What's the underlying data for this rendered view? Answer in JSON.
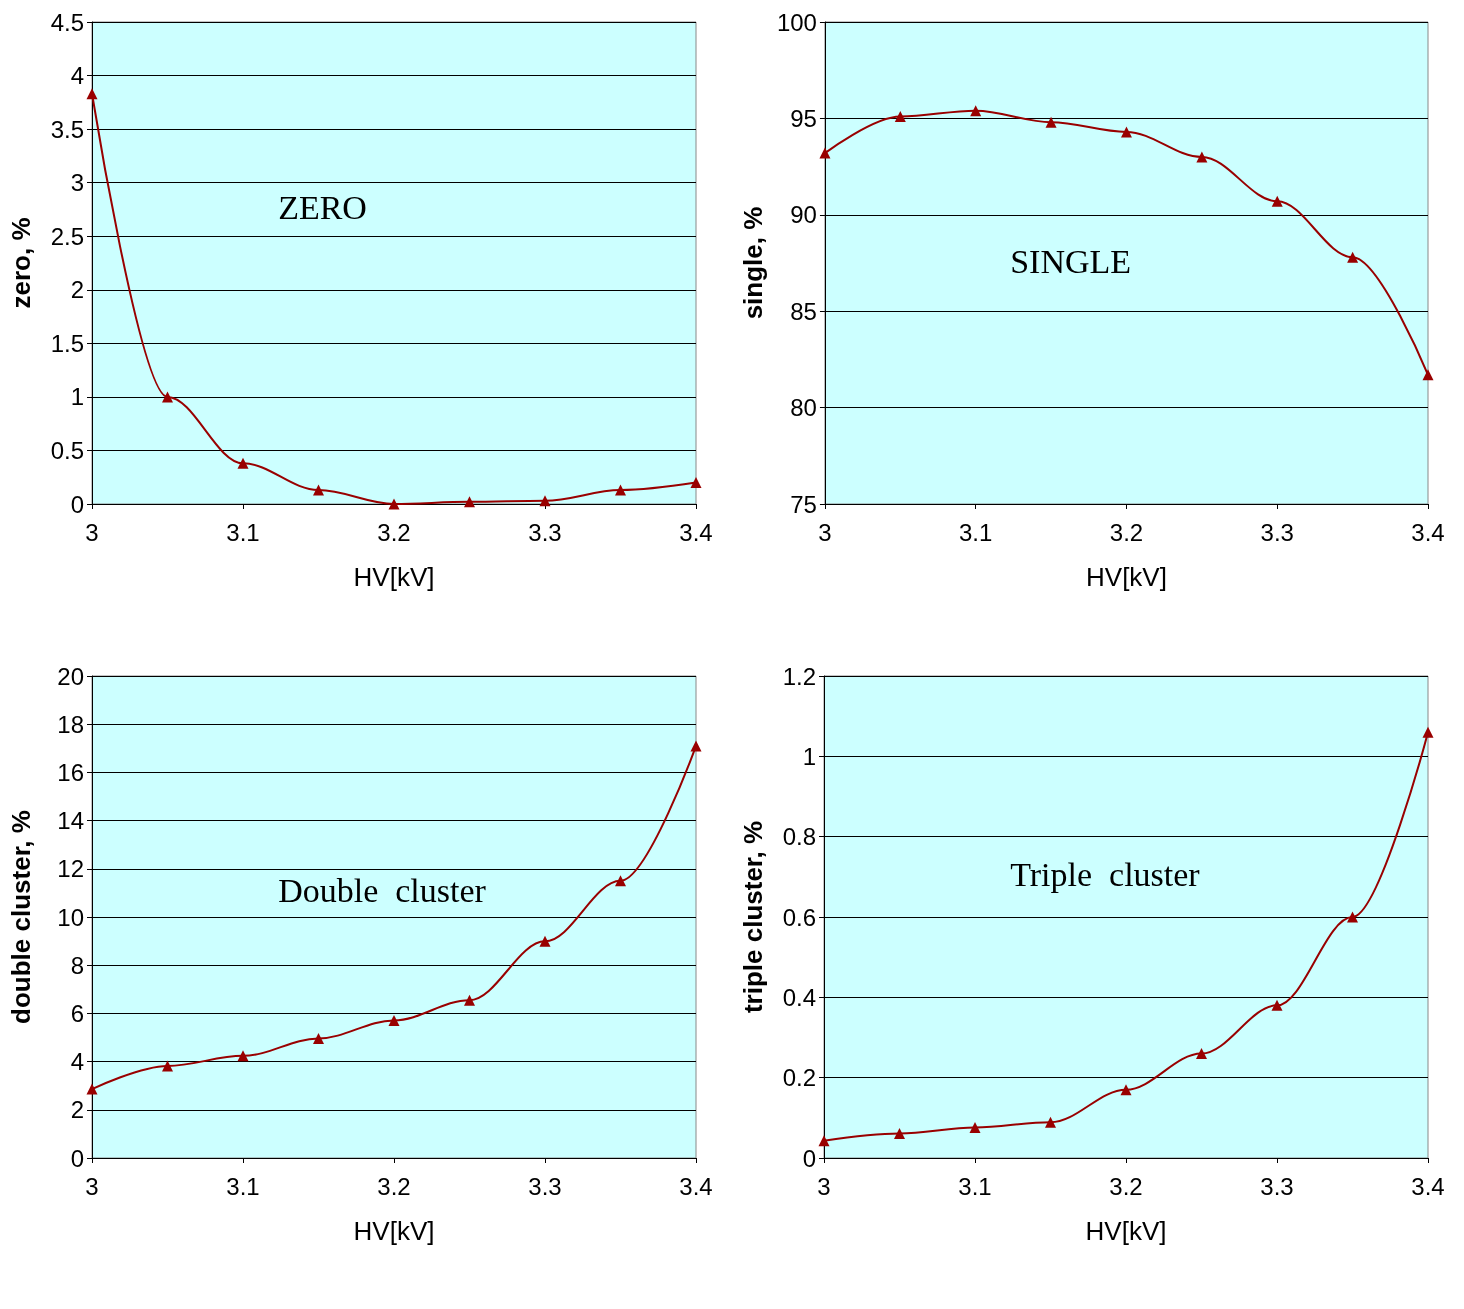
{
  "chart_data": [
    {
      "type": "line",
      "xlabel": "HV[kV]",
      "ylabel": "zero, %",
      "annotations": [
        "ZERO"
      ],
      "x": [
        3,
        3.05,
        3.1,
        3.15,
        3.2,
        3.25,
        3.3,
        3.35,
        3.4
      ],
      "series": [
        {
          "color": "#990000",
          "values": [
            3.83,
            1.0,
            0.38,
            0.13,
            0.0,
            0.02,
            0.03,
            0.13,
            0.2
          ]
        }
      ],
      "xlim": [
        3,
        3.4
      ],
      "xticks": [
        3,
        3.1,
        3.2,
        3.3,
        3.4
      ],
      "ylim": [
        0,
        4.5
      ],
      "yticks": [
        0,
        0.5,
        1,
        1.5,
        2,
        2.5,
        3,
        3.5,
        4,
        4.5
      ],
      "grid": "y",
      "marker": "triangle"
    },
    {
      "type": "line",
      "xlabel": "HV[kV]",
      "ylabel": "single, %",
      "annotations": [
        "SINGLE"
      ],
      "x": [
        3,
        3.05,
        3.1,
        3.15,
        3.2,
        3.25,
        3.3,
        3.35,
        3.4
      ],
      "series": [
        {
          "color": "#990000",
          "values": [
            93.2,
            95.1,
            95.4,
            94.8,
            94.3,
            93.0,
            90.7,
            87.8,
            81.7
          ]
        }
      ],
      "xlim": [
        3,
        3.4
      ],
      "xticks": [
        3,
        3.1,
        3.2,
        3.3,
        3.4
      ],
      "ylim": [
        75,
        100
      ],
      "yticks": [
        75,
        80,
        85,
        90,
        95,
        100
      ],
      "grid": "y",
      "marker": "triangle"
    },
    {
      "type": "line",
      "xlabel": "HV[kV]",
      "ylabel": "double cluster, %",
      "annotations": [
        "Double  cluster"
      ],
      "x": [
        3,
        3.05,
        3.1,
        3.15,
        3.2,
        3.25,
        3.3,
        3.35,
        3.4
      ],
      "series": [
        {
          "color": "#990000",
          "values": [
            2.86,
            3.82,
            4.24,
            4.96,
            5.71,
            6.55,
            8.99,
            11.5,
            17.1
          ]
        }
      ],
      "xlim": [
        3,
        3.4
      ],
      "xticks": [
        3,
        3.1,
        3.2,
        3.3,
        3.4
      ],
      "ylim": [
        0,
        20
      ],
      "yticks": [
        0,
        2,
        4,
        6,
        8,
        10,
        12,
        14,
        16,
        18,
        20
      ],
      "grid": "y",
      "marker": "triangle"
    },
    {
      "type": "line",
      "xlabel": "HV[kV]",
      "ylabel": "triple cluster, %",
      "annotations": [
        "Triple  cluster"
      ],
      "x": [
        3,
        3.05,
        3.1,
        3.15,
        3.2,
        3.25,
        3.3,
        3.35,
        3.4
      ],
      "series": [
        {
          "color": "#990000",
          "values": [
            0.043,
            0.061,
            0.076,
            0.089,
            0.17,
            0.26,
            0.38,
            0.6,
            1.06
          ]
        }
      ],
      "xlim": [
        3,
        3.4
      ],
      "xticks": [
        3,
        3.1,
        3.2,
        3.3,
        3.4
      ],
      "ylim": [
        0,
        1.2
      ],
      "yticks": [
        0,
        0.2,
        0.4,
        0.6,
        0.8,
        1,
        1.2
      ],
      "grid": "y",
      "marker": "triangle"
    }
  ]
}
